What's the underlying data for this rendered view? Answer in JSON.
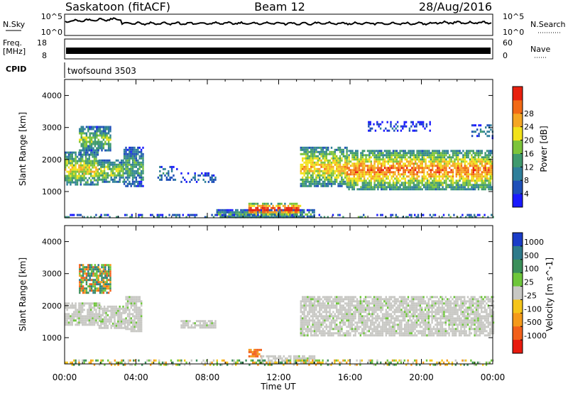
{
  "header": {
    "station": "Saskatoon (fitACF)",
    "beam": "Beam 12",
    "date": "28/Aug/2016"
  },
  "noise_panel": {
    "left_label": "N.Sky",
    "right_label": "N.Search",
    "left_ticks": [
      "10^5",
      "10^0"
    ],
    "right_ticks": [
      "10^5",
      "10^0"
    ]
  },
  "freq_panel": {
    "left_label_line1": "Freq.",
    "left_label_line2": "[MHz]",
    "left_ticks": [
      "18",
      "8"
    ],
    "right_label": "Nave",
    "right_ticks": [
      "60",
      "0"
    ]
  },
  "cpid_panel": {
    "label": "CPID",
    "program": "twofsound 3503"
  },
  "x_axis": {
    "label": "Time UT",
    "ticks": [
      "00:00",
      "04:00",
      "08:00",
      "12:00",
      "16:00",
      "20:00",
      "00:00"
    ]
  },
  "chart_data": [
    {
      "type": "heatmap",
      "title": "",
      "xlabel": "Time UT",
      "ylabel": "Slant Range [km]",
      "xlim": [
        0,
        24
      ],
      "ylim": [
        180,
        4500
      ],
      "yticks": [
        "1000",
        "2000",
        "3000",
        "4000"
      ],
      "colorbar": {
        "label": "Power [dB]",
        "range": [
          0,
          32
        ],
        "ticks": [
          "4",
          "8",
          "12",
          "16",
          "20",
          "24",
          "28"
        ],
        "colors": [
          "#1a1aff",
          "#1e4fb8",
          "#2f7f9a",
          "#3f9a6e",
          "#7cc43a",
          "#f2e21a",
          "#f5a623",
          "#f26a16",
          "#e8200e"
        ]
      },
      "regions": [
        {
          "t": [
            0.0,
            1.9
          ],
          "r": [
            1200,
            2250
          ],
          "level": 0.55
        },
        {
          "t": [
            0.8,
            2.6
          ],
          "r": [
            2300,
            3050
          ],
          "level": 0.45
        },
        {
          "t": [
            1.9,
            3.3
          ],
          "r": [
            1300,
            2000
          ],
          "level": 0.5
        },
        {
          "t": [
            3.3,
            4.4
          ],
          "r": [
            1200,
            2400
          ],
          "level": 0.35
        },
        {
          "t": [
            5.2,
            6.3
          ],
          "r": [
            1350,
            1800
          ],
          "level": 0.25
        },
        {
          "t": [
            6.5,
            8.5
          ],
          "r": [
            1300,
            1600
          ],
          "level": 0.2
        },
        {
          "t": [
            8.5,
            14.0
          ],
          "r": [
            200,
            450
          ],
          "level": 0.35
        },
        {
          "t": [
            10.3,
            13.2
          ],
          "r": [
            300,
            650
          ],
          "level": 0.9
        },
        {
          "t": [
            13.2,
            15.8
          ],
          "r": [
            1200,
            2400
          ],
          "level": 0.6
        },
        {
          "t": [
            15.8,
            24.0
          ],
          "r": [
            1100,
            2300
          ],
          "level": 0.7
        },
        {
          "t": [
            17.0,
            20.5
          ],
          "r": [
            2900,
            3200
          ],
          "level": 0.15
        },
        {
          "t": [
            22.8,
            24.0
          ],
          "r": [
            2700,
            3100
          ],
          "level": 0.25
        },
        {
          "t": [
            0.0,
            24.0
          ],
          "r": [
            180,
            300
          ],
          "level": 0.3
        }
      ]
    },
    {
      "type": "heatmap",
      "title": "",
      "xlabel": "Time UT",
      "ylabel": "Slant Range [km]",
      "xlim": [
        0,
        24
      ],
      "ylim": [
        180,
        4500
      ],
      "yticks": [
        "1000",
        "2000",
        "3000",
        "4000"
      ],
      "colorbar": {
        "label": "Velocity [m s^-1]",
        "ticks": [
          "1000",
          "500",
          "100",
          "25",
          "-25",
          "-100",
          "-500",
          "-1000"
        ],
        "colors": [
          "#1a3cc8",
          "#2e7a8a",
          "#3b8f5a",
          "#6ec63a",
          "#c8c8c4",
          "#f5c51a",
          "#f59a1a",
          "#f2601a",
          "#e81a0e"
        ]
      },
      "regions": [
        {
          "t": [
            0.0,
            2.0
          ],
          "r": [
            1400,
            2100
          ],
          "class": "ground"
        },
        {
          "t": [
            0.8,
            2.6
          ],
          "r": [
            2400,
            3300
          ],
          "class": "mixed"
        },
        {
          "t": [
            1.9,
            3.4
          ],
          "r": [
            1300,
            2000
          ],
          "class": "ground"
        },
        {
          "t": [
            3.4,
            4.3
          ],
          "r": [
            1200,
            2300
          ],
          "class": "ground"
        },
        {
          "t": [
            6.5,
            8.5
          ],
          "r": [
            1300,
            1550
          ],
          "class": "ground"
        },
        {
          "t": [
            10.3,
            11.0
          ],
          "r": [
            450,
            650
          ],
          "class": "away"
        },
        {
          "t": [
            11.0,
            14.0
          ],
          "r": [
            200,
            450
          ],
          "class": "ground"
        },
        {
          "t": [
            13.2,
            24.0
          ],
          "r": [
            1100,
            2300
          ],
          "class": "ground"
        },
        {
          "t": [
            0.0,
            24.0
          ],
          "r": [
            180,
            320
          ],
          "class": "speckle"
        }
      ]
    }
  ],
  "colors": {
    "ground_scatter": "#c8c8c4",
    "frame": "#000000"
  }
}
